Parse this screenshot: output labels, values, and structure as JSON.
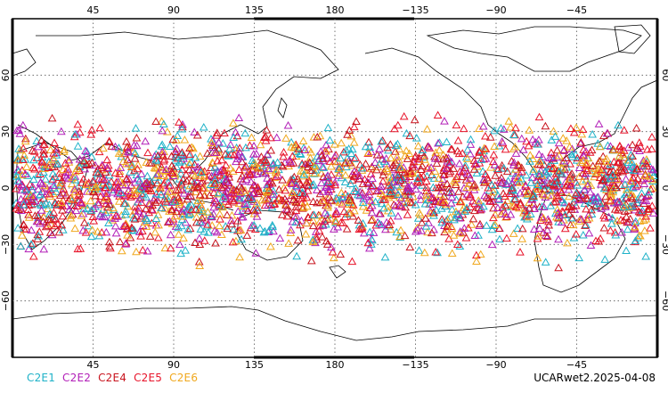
{
  "map": {
    "lon_ticks_top": [
      "45",
      "90",
      "135",
      "180",
      "−135",
      "−90",
      "−45"
    ],
    "lon_ticks_bottom": [
      "45",
      "90",
      "135",
      "180",
      "−135",
      "−90",
      "−45"
    ],
    "lat_ticks_left": [
      "60",
      "30",
      "0",
      "−30",
      "−60"
    ],
    "lat_ticks_right": [
      "60",
      "30",
      "0",
      "−30",
      "−60"
    ],
    "grid": "dotted",
    "projection": "cylindrical, centered 180"
  },
  "legend": {
    "items": [
      {
        "label": "C2E1",
        "color": "#1fb2c8"
      },
      {
        "label": "C2E2",
        "color": "#b21fb8"
      },
      {
        "label": "C2E4",
        "color": "#c8141e"
      },
      {
        "label": "C2E5",
        "color": "#e8142a"
      },
      {
        "label": "C2E6",
        "color": "#f0a81e"
      }
    ]
  },
  "footer": {
    "product": "UCARwet2.2025-04-08"
  }
}
